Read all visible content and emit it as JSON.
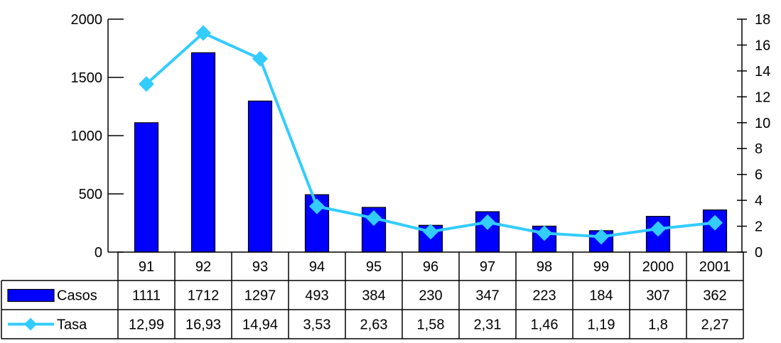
{
  "chart_data": {
    "type": "bar",
    "title": "",
    "categories": [
      "91",
      "92",
      "93",
      "94",
      "95",
      "96",
      "97",
      "98",
      "99",
      "2000",
      "2001"
    ],
    "series": [
      {
        "name": "Casos",
        "type": "bar",
        "axis": "left",
        "color": "#0000ff",
        "values": [
          1111,
          1712,
          1297,
          493,
          384,
          230,
          347,
          223,
          184,
          307,
          362
        ],
        "labels": [
          "1111",
          "1712",
          "1297",
          "493",
          "384",
          "230",
          "347",
          "223",
          "184",
          "307",
          "362"
        ]
      },
      {
        "name": "Tasa",
        "type": "line",
        "axis": "right",
        "color": "#33ccff",
        "values": [
          12.99,
          16.93,
          14.94,
          3.53,
          2.63,
          1.58,
          2.31,
          1.46,
          1.19,
          1.8,
          2.27
        ],
        "labels": [
          "12,99",
          "16,93",
          "14,94",
          "3,53",
          "2,63",
          "1,58",
          "2,31",
          "1,46",
          "1,19",
          "1,8",
          "2,27"
        ]
      }
    ],
    "y_left": {
      "min": 0,
      "max": 2000,
      "ticks": [
        "0",
        "500",
        "1000",
        "1500",
        "2000"
      ]
    },
    "y_right": {
      "min": 0,
      "max": 18,
      "ticks": [
        "0",
        "2",
        "4",
        "6",
        "8",
        "10",
        "12",
        "14",
        "16",
        "18"
      ]
    },
    "legend": "data-table",
    "grid": false
  }
}
